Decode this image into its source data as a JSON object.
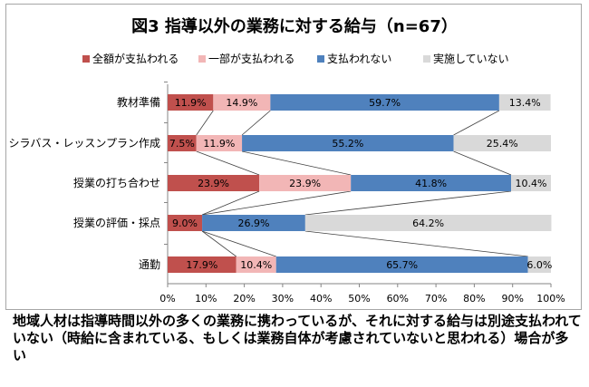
{
  "chart_data": {
    "type": "bar",
    "stacked": true,
    "orientation": "horizontal",
    "title": "図3 指導以外の業務に対する給与（n=67）",
    "categories": [
      "教材準備",
      "シラバス・レッスンプラン作成",
      "授業の打ち合わせ",
      "授業の評価・採点",
      "通勤"
    ],
    "series": [
      {
        "name": "全額が支払われる",
        "color": "#c0504d",
        "values": [
          11.9,
          7.5,
          23.9,
          9.0,
          17.9
        ],
        "labels": [
          "11.9%",
          "7.5%",
          "23.9%",
          "9.0%",
          "17.9%"
        ]
      },
      {
        "name": "一部が支払われる",
        "color": "#f2b6b6",
        "values": [
          14.9,
          11.9,
          23.9,
          0,
          10.4
        ],
        "labels": [
          "14.9%",
          "11.9%",
          "23.9%",
          "",
          "10.4%"
        ]
      },
      {
        "name": "支払われない",
        "color": "#4f81bd",
        "values": [
          59.7,
          55.2,
          41.8,
          26.9,
          65.7
        ],
        "labels": [
          "59.7%",
          "55.2%",
          "41.8%",
          "26.9%",
          "65.7%"
        ]
      },
      {
        "name": "実施していない",
        "color": "#d9d9d9",
        "values": [
          13.4,
          25.4,
          10.4,
          64.2,
          6.0
        ],
        "labels": [
          "13.4%",
          "25.4%",
          "10.4%",
          "64.2%",
          "6.0%"
        ]
      }
    ],
    "x_ticks": [
      "0%",
      "10%",
      "20%",
      "30%",
      "40%",
      "50%",
      "60%",
      "70%",
      "80%",
      "90%",
      "100%"
    ],
    "xlim": [
      0,
      100
    ],
    "legend_position": "top",
    "grid": false,
    "connector_lines": true
  },
  "caption": "地域人材は指導時間以外の多くの業務に携わっているが、それに対する給与は別途支払われていない（時給に含まれている、もしくは業務自体が考慮されていないと思われる）場合が多い"
}
